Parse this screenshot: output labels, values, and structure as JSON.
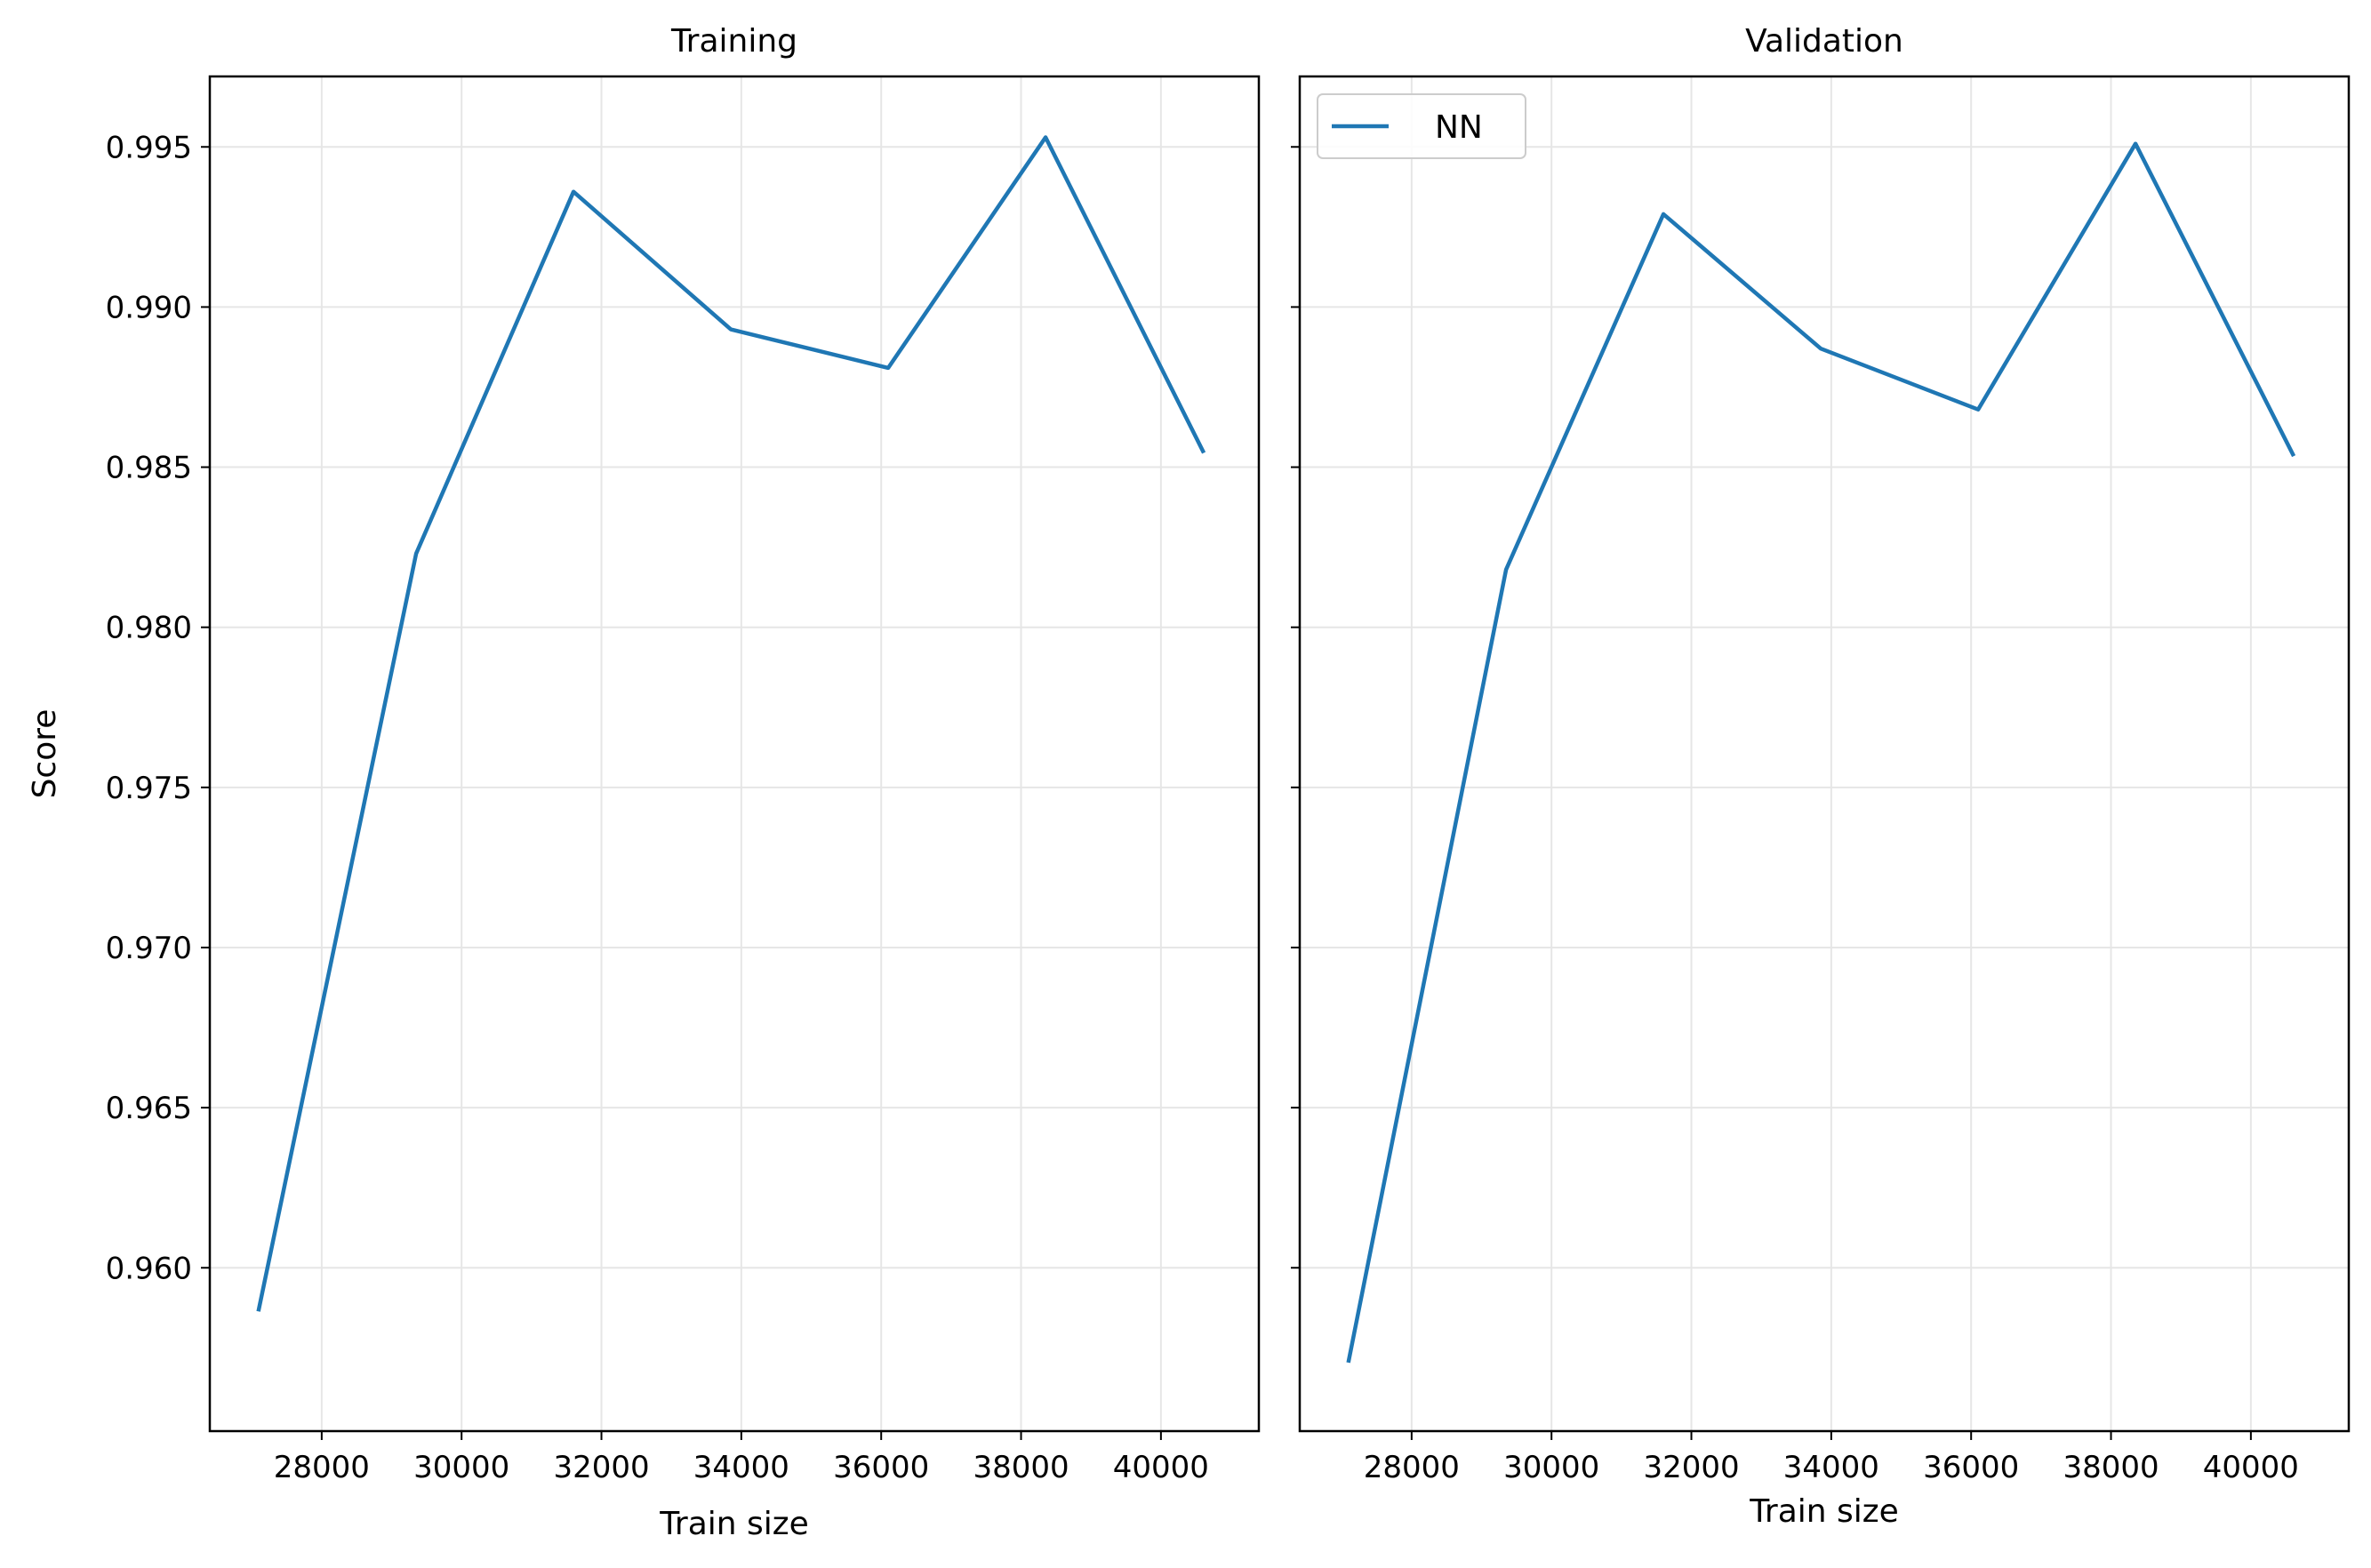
{
  "chart_data": [
    {
      "type": "line",
      "title": "Training",
      "xlabel": "Train size",
      "ylabel": "Score",
      "xlim": [
        26400,
        41400
      ],
      "ylim": [
        0.9549,
        0.9972
      ],
      "xticks": [
        28000,
        30000,
        32000,
        34000,
        36000,
        38000,
        40000
      ],
      "xtick_labels": [
        "28000",
        "30000",
        "32000",
        "34000",
        "36000",
        "38000",
        "40000"
      ],
      "yticks": [
        0.96,
        0.965,
        0.97,
        0.975,
        0.98,
        0.985,
        0.99,
        0.995
      ],
      "ytick_labels": [
        "0.960",
        "0.965",
        "0.970",
        "0.975",
        "0.980",
        "0.985",
        "0.990",
        "0.995"
      ],
      "grid": true,
      "legend": null,
      "series": [
        {
          "color": "#1f77b4",
          "x": [
            27100,
            29350,
            31600,
            33850,
            36100,
            38350,
            40600
          ],
          "y": [
            0.9587,
            0.9823,
            0.9936,
            0.9893,
            0.9881,
            0.9953,
            0.9855
          ]
        }
      ]
    },
    {
      "type": "line",
      "title": "Validation",
      "xlabel": "Train size",
      "ylabel": "",
      "xlim": [
        26400,
        41400
      ],
      "ylim": [
        0.9549,
        0.9972
      ],
      "xticks": [
        28000,
        30000,
        32000,
        34000,
        36000,
        38000,
        40000
      ],
      "xtick_labels": [
        "28000",
        "30000",
        "32000",
        "34000",
        "36000",
        "38000",
        "40000"
      ],
      "yticks": [
        0.96,
        0.965,
        0.97,
        0.975,
        0.98,
        0.985,
        0.99,
        0.995
      ],
      "ytick_labels": [],
      "grid": true,
      "legend": "top-left",
      "series": [
        {
          "name": "NN",
          "color": "#1f77b4",
          "x": [
            27100,
            29350,
            31600,
            33850,
            36100,
            38350,
            40600
          ],
          "y": [
            0.9571,
            0.9818,
            0.9929,
            0.9887,
            0.9868,
            0.9951,
            0.9854
          ]
        }
      ]
    }
  ]
}
